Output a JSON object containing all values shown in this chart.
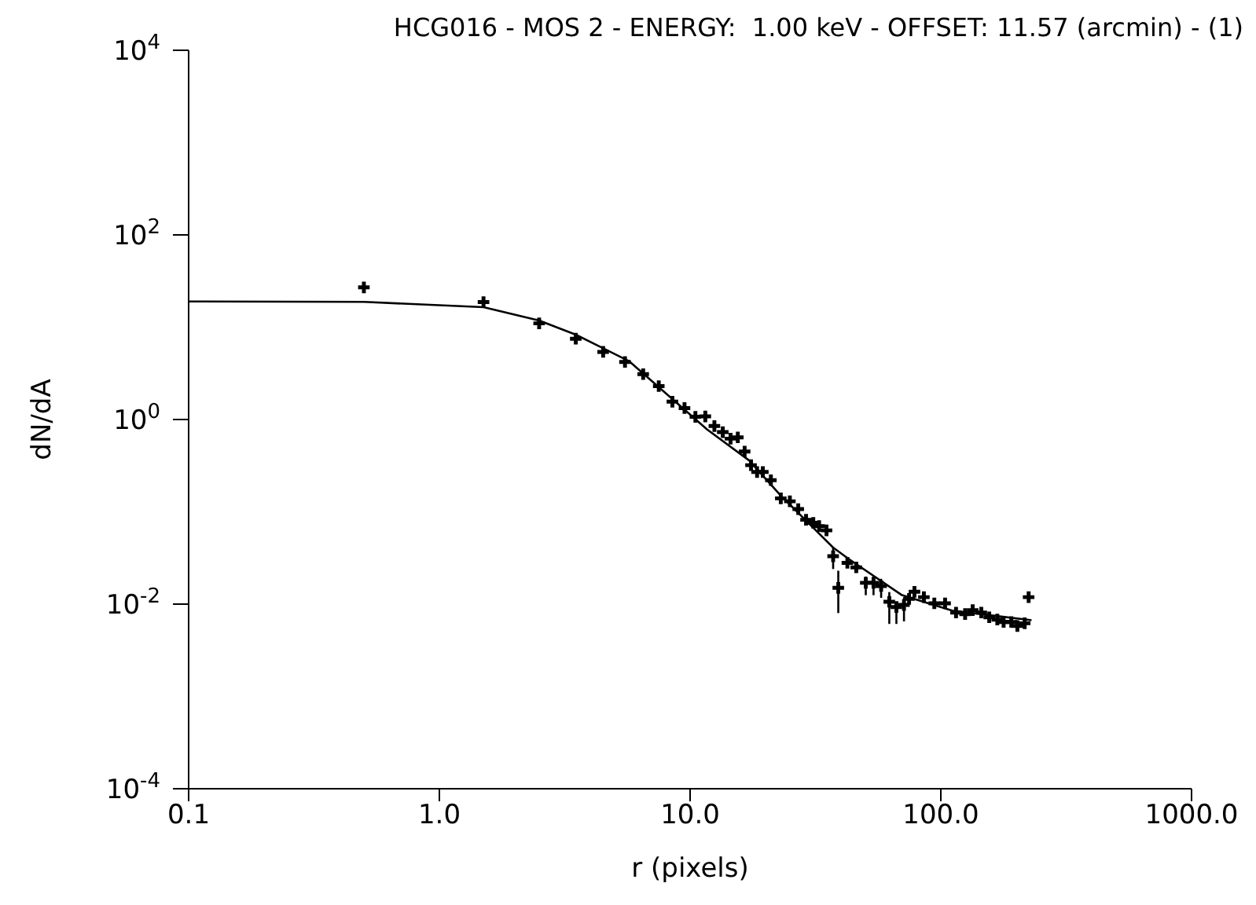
{
  "chart_data": {
    "type": "scatter",
    "title": "HCG016 - MOS 2 - ENERGY:  1.00 keV - OFFSET: 11.57 (arcmin) - (1)",
    "xlabel": "r (pixels)",
    "ylabel": "dN/dA",
    "log": "xy",
    "marker": "cross",
    "xlim": [
      0.1,
      1000
    ],
    "ylim": [
      0.0001,
      10000
    ],
    "xticks": [
      {
        "value": 0.1,
        "label": "0.1"
      },
      {
        "value": 1,
        "label": "1.0"
      },
      {
        "value": 10,
        "label": "10.0"
      },
      {
        "value": 100,
        "label": "100.0"
      },
      {
        "value": 1000,
        "label": "1000.0"
      }
    ],
    "yticks": [
      {
        "value": 0.0001,
        "label": "10$^{-4}$"
      },
      {
        "value": 0.01,
        "label": "10$^{-2}$"
      },
      {
        "value": 1,
        "label": "10$^{0}$"
      },
      {
        "value": 100,
        "label": "10$^{2}$"
      },
      {
        "value": 10000,
        "label": "10$^{4}$"
      }
    ],
    "series": [
      {
        "color": "#000000",
        "x": [
          0.5,
          1.5,
          2.5,
          3.5,
          4.5,
          5.5,
          6.5,
          7.5,
          8.5,
          9.5,
          10.5,
          11.5,
          12.5,
          13.5,
          14.5,
          15.5,
          16.5,
          17.5,
          18.5,
          19.5,
          21,
          23,
          25,
          27,
          29,
          31,
          32.7,
          35,
          37.2,
          39,
          42.4,
          46,
          50.2,
          53.9,
          57.8,
          62.3,
          66.5,
          71.3,
          74.7,
          78.5,
          85.6,
          94.2,
          104,
          115,
          125,
          134,
          145,
          156,
          168,
          178,
          191,
          202,
          216,
          224
        ],
        "values": [
          27,
          18.7,
          11,
          7.5,
          5.4,
          4.2,
          3.1,
          2.3,
          1.56,
          1.33,
          1.07,
          1.08,
          0.85,
          0.73,
          0.62,
          0.64,
          0.45,
          0.32,
          0.27,
          0.27,
          0.22,
          0.14,
          0.13,
          0.107,
          0.082,
          0.076,
          0.07,
          0.063,
          0.033,
          0.015,
          0.028,
          0.025,
          0.017,
          0.017,
          0.0157,
          0.0106,
          0.0093,
          0.0098,
          0.0114,
          0.0136,
          0.0119,
          0.0102,
          0.0102,
          0.0081,
          0.0078,
          0.0086,
          0.0081,
          0.0072,
          0.0068,
          0.0064,
          0.0064,
          0.0058,
          0.0062,
          0.0119
        ],
        "errors": [
          null,
          null,
          null,
          null,
          null,
          null,
          null,
          null,
          null,
          null,
          null,
          null,
          null,
          null,
          null,
          null,
          null,
          null,
          null,
          null,
          null,
          null,
          null,
          null,
          null,
          null,
          null,
          null,
          [
            0.024,
            0.041
          ],
          [
            0.008,
            0.023
          ],
          null,
          null,
          [
            0.0125,
            0.0199
          ],
          [
            0.0125,
            0.0199
          ],
          [
            0.0117,
            0.0188
          ],
          [
            0.0061,
            0.0135
          ],
          [
            0.0061,
            0.0102
          ],
          [
            0.0065,
            0.0117
          ],
          null,
          null,
          null,
          null,
          null,
          null,
          null,
          null,
          null,
          null,
          null,
          null,
          null,
          null,
          null,
          null
        ]
      },
      {
        "type": "line",
        "color": "#000000",
        "marker": "none",
        "x": [
          0.1,
          0.5,
          1.5,
          2.5,
          3.5,
          5.7,
          11.7,
          17.2,
          23,
          37.2,
          42.8,
          70,
          111,
          230
        ],
        "values": [
          19,
          18.8,
          16.5,
          11.8,
          8.3,
          4.3,
          0.78,
          0.36,
          0.15,
          0.041,
          0.031,
          0.0125,
          0.0085,
          0.0067
        ]
      }
    ]
  }
}
